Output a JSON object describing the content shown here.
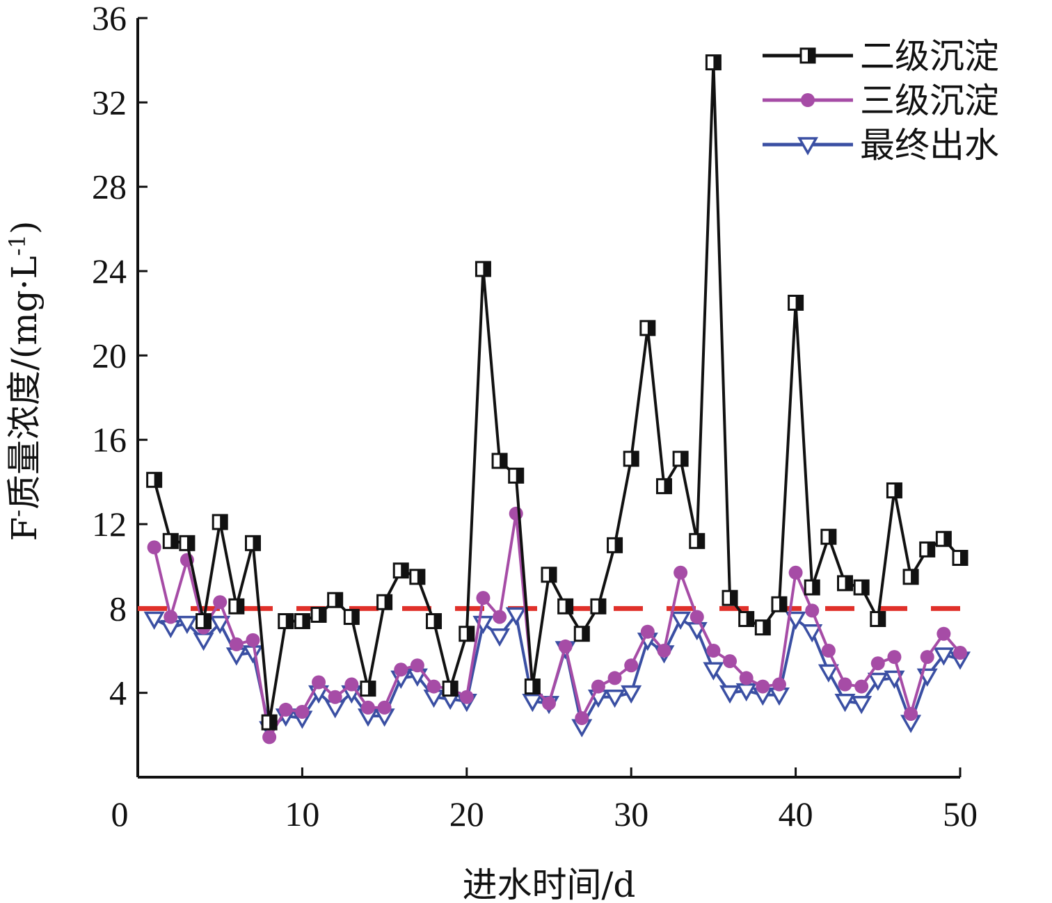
{
  "chart_data": {
    "type": "line",
    "title": "",
    "xlabel": "进水时间/d",
    "ylabel_main": "F",
    "ylabel_sup_minus": "-",
    "ylabel_mid": "质量浓度/(mg·L",
    "ylabel_sup_exp": "-1",
    "ylabel_end": ")",
    "xlim": [
      0,
      50
    ],
    "ylim": [
      0,
      36
    ],
    "xticks": [
      0,
      10,
      20,
      30,
      40,
      50
    ],
    "xtick_labels": [
      "0",
      "10",
      "20",
      "30",
      "40",
      "50"
    ],
    "yticks": [
      4,
      8,
      12,
      16,
      20,
      24,
      28,
      32,
      36
    ],
    "ytick_labels": [
      "4",
      "8",
      "12",
      "16",
      "20",
      "24",
      "28",
      "32",
      "36"
    ],
    "grid": false,
    "legend_position": "top-right",
    "x": [
      1,
      2,
      3,
      4,
      5,
      6,
      7,
      8,
      9,
      10,
      11,
      12,
      13,
      14,
      15,
      16,
      17,
      18,
      19,
      20,
      21,
      22,
      23,
      24,
      25,
      26,
      27,
      28,
      29,
      30,
      31,
      32,
      33,
      34,
      35,
      36,
      37,
      38,
      39,
      40,
      41,
      42,
      43,
      44,
      45,
      46,
      47,
      48,
      49,
      50
    ],
    "series": [
      {
        "name": "二级沉淀",
        "color": "#111111",
        "marker": "half-filled-square",
        "values": [
          14.1,
          11.2,
          11.1,
          7.4,
          12.1,
          8.1,
          11.1,
          2.6,
          7.4,
          7.4,
          7.7,
          8.4,
          7.6,
          4.2,
          8.3,
          9.8,
          9.5,
          7.4,
          4.2,
          6.8,
          24.1,
          15.0,
          14.3,
          4.3,
          9.6,
          8.1,
          6.8,
          8.1,
          11.0,
          15.1,
          21.3,
          13.8,
          15.1,
          11.2,
          33.9,
          8.5,
          7.5,
          7.1,
          8.2,
          22.5,
          9.0,
          11.4,
          9.2,
          9.0,
          7.5,
          13.6,
          9.5,
          10.8,
          11.3,
          10.4
        ]
      },
      {
        "name": "三级沉淀",
        "color": "#a64ca6",
        "marker": "filled-circle",
        "values": [
          10.9,
          7.6,
          10.3,
          7.1,
          8.3,
          6.3,
          6.5,
          1.9,
          3.2,
          3.1,
          4.5,
          3.8,
          4.4,
          3.3,
          3.3,
          5.1,
          5.3,
          4.3,
          4.2,
          3.8,
          8.5,
          7.6,
          12.5,
          4.3,
          3.5,
          6.2,
          2.8,
          4.3,
          4.7,
          5.3,
          6.9,
          6.0,
          9.7,
          7.6,
          6.0,
          5.5,
          4.7,
          4.3,
          4.4,
          9.7,
          7.9,
          6.0,
          4.4,
          4.3,
          5.4,
          5.7,
          3.0,
          5.7,
          6.8,
          5.9
        ]
      },
      {
        "name": "最终出水",
        "color": "#3a4fa3",
        "marker": "hollow-triangle-down",
        "values": [
          7.5,
          7.1,
          7.3,
          6.5,
          7.3,
          5.8,
          5.9,
          2.3,
          2.9,
          2.8,
          4.0,
          3.3,
          4.0,
          2.9,
          2.9,
          4.7,
          4.8,
          3.8,
          3.7,
          3.6,
          7.3,
          6.7,
          7.7,
          3.6,
          3.5,
          6.1,
          2.4,
          3.8,
          3.8,
          4.0,
          6.5,
          5.9,
          7.5,
          7.0,
          5.1,
          4.0,
          4.1,
          3.9,
          3.9,
          7.5,
          6.9,
          5.0,
          3.6,
          3.5,
          4.6,
          4.7,
          2.6,
          4.8,
          5.8,
          5.6
        ]
      }
    ],
    "reference_line": {
      "value": 8,
      "color": "#e0302a",
      "style": "dashed"
    }
  }
}
